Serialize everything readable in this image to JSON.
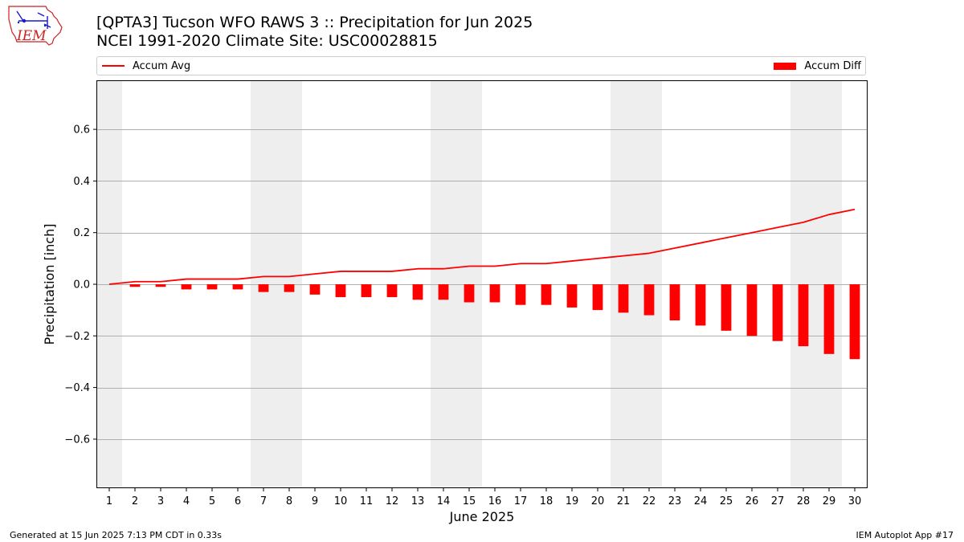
{
  "chart_data": {
    "type": "bar",
    "title": "[QPTA3] Tucson WFO RAWS 3 :: Precipitation for Jun 2025",
    "subtitle": "NCEI 1991-2020 Climate Site: USC00028815",
    "xlabel": "June 2025",
    "ylabel": "Precipitation [inch]",
    "x": [
      1,
      2,
      3,
      4,
      5,
      6,
      7,
      8,
      9,
      10,
      11,
      12,
      13,
      14,
      15,
      16,
      17,
      18,
      19,
      20,
      21,
      22,
      23,
      24,
      25,
      26,
      27,
      28,
      29,
      30
    ],
    "xlim": [
      0.5,
      30.5
    ],
    "ylim": [
      -0.79,
      0.79
    ],
    "yticks": [
      -0.6,
      -0.4,
      -0.2,
      0.0,
      0.2,
      0.4,
      0.6
    ],
    "grid": "horizontal",
    "legend_placement": "top",
    "weekend_shading": [
      [
        0.5,
        1.5
      ],
      [
        6.5,
        8.5
      ],
      [
        13.5,
        15.5
      ],
      [
        20.5,
        22.5
      ],
      [
        27.5,
        29.5
      ]
    ],
    "series": [
      {
        "name": "Accum Avg",
        "type": "line",
        "color": "#ff0000",
        "values": [
          0.0,
          0.01,
          0.01,
          0.02,
          0.02,
          0.02,
          0.03,
          0.03,
          0.04,
          0.05,
          0.05,
          0.05,
          0.06,
          0.06,
          0.07,
          0.07,
          0.08,
          0.08,
          0.09,
          0.1,
          0.11,
          0.12,
          0.14,
          0.16,
          0.18,
          0.2,
          0.22,
          0.24,
          0.27,
          0.29
        ]
      },
      {
        "name": "Accum Diff",
        "type": "bar",
        "color": "#ff0000",
        "values": [
          0.0,
          -0.01,
          -0.01,
          -0.02,
          -0.02,
          -0.02,
          -0.03,
          -0.03,
          -0.04,
          -0.05,
          -0.05,
          -0.05,
          -0.06,
          -0.06,
          -0.07,
          -0.07,
          -0.08,
          -0.08,
          -0.09,
          -0.1,
          -0.11,
          -0.12,
          -0.14,
          -0.16,
          -0.18,
          -0.2,
          -0.22,
          -0.24,
          -0.27,
          -0.29
        ]
      }
    ]
  },
  "footer": {
    "left": "Generated at 15 Jun 2025 7:13 PM CDT in 0.33s",
    "right": "IEM Autoplot App #17"
  },
  "logo": {
    "text": "IEM"
  }
}
